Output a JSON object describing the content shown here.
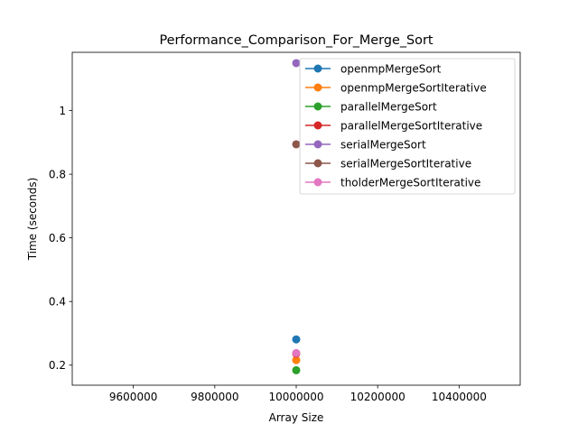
{
  "chart_data": {
    "type": "scatter",
    "title": "Performance_Comparison_For_Merge_Sort",
    "xlabel": "Array Size",
    "ylabel": "Time (seconds)",
    "xlim": [
      9450000,
      10550000
    ],
    "ylim": [
      0.137,
      1.183
    ],
    "x_ticks": [
      9600000,
      9800000,
      10000000,
      10200000,
      10400000
    ],
    "x_tick_labels": [
      "9600000",
      "9800000",
      "10000000",
      "10200000",
      "10400000"
    ],
    "y_ticks": [
      0.2,
      0.4,
      0.6,
      0.8,
      1.0
    ],
    "y_tick_labels": [
      "0.2",
      "0.4",
      "0.6",
      "0.8",
      "1"
    ],
    "grid": false,
    "legend_position": "top-right",
    "series": [
      {
        "name": "openmpMergeSort",
        "color": "#1f77b4",
        "points": [
          [
            10000000,
            0.281
          ]
        ]
      },
      {
        "name": "openmpMergeSortIterative",
        "color": "#ff7f0e",
        "points": [
          [
            10000000,
            0.216
          ]
        ]
      },
      {
        "name": "parallelMergeSort",
        "color": "#2ca02c",
        "points": [
          [
            10000000,
            0.184
          ]
        ]
      },
      {
        "name": "parallelMergeSortIterative",
        "color": "#d62728",
        "points": [
          [
            10000000,
            0.236
          ]
        ]
      },
      {
        "name": "serialMergeSort",
        "color": "#9467bd",
        "points": [
          [
            10000000,
            1.149
          ]
        ]
      },
      {
        "name": "serialMergeSortIterative",
        "color": "#8c564b",
        "points": [
          [
            10000000,
            0.894
          ]
        ]
      },
      {
        "name": "tholderMergeSortIterative",
        "color": "#e377c2",
        "points": [
          [
            10000000,
            0.238
          ]
        ]
      }
    ]
  }
}
